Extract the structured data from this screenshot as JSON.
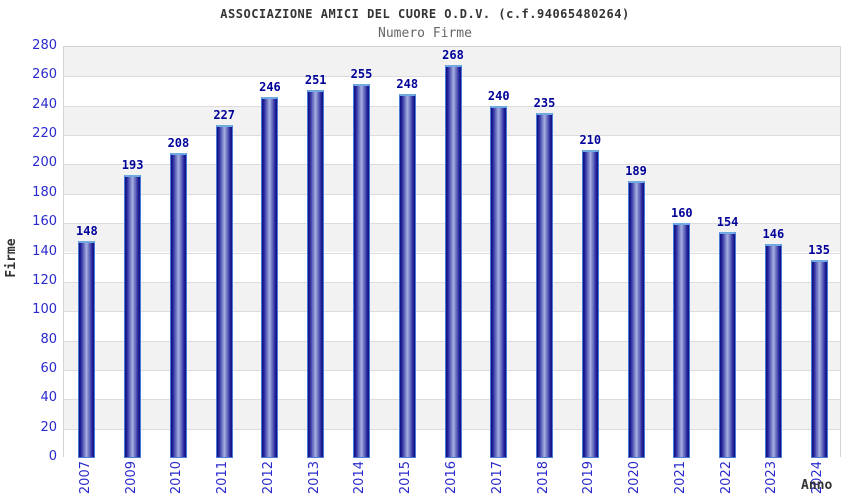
{
  "chart_data": {
    "type": "bar",
    "title": "ASSOCIAZIONE AMICI DEL CUORE O.D.V. (c.f.94065480264)",
    "subtitle": "Numero Firme",
    "xlabel": "Anno",
    "ylabel": "Firme",
    "categories": [
      "2007",
      "2009",
      "2010",
      "2011",
      "2012",
      "2013",
      "2014",
      "2015",
      "2016",
      "2017",
      "2018",
      "2019",
      "2020",
      "2021",
      "2022",
      "2023",
      "2024"
    ],
    "values": [
      148,
      193,
      208,
      227,
      246,
      251,
      255,
      248,
      268,
      240,
      235,
      210,
      189,
      160,
      154,
      146,
      135
    ],
    "ylim": [
      0,
      280
    ],
    "ytick_step": 20,
    "grid": true,
    "legend_position": "none",
    "plot_background": "alternating horizontal bands"
  },
  "colors": {
    "background": "#FFFFFF",
    "title": "#333333",
    "subtitle": "#666666",
    "axis_title": "#333333",
    "tick_label": "#2929CC",
    "value_label": "#000099",
    "band_alt": "#F2F2F2",
    "grid_line": "#DCDCDC",
    "plot_border": "#D4D4D4",
    "bar_dark": "#10107E",
    "bar_mid": "#23239B",
    "bar_light": "#A8B0E0",
    "bar_border": "#4A7CD6",
    "bar_border_top": "#6FAAE0"
  }
}
